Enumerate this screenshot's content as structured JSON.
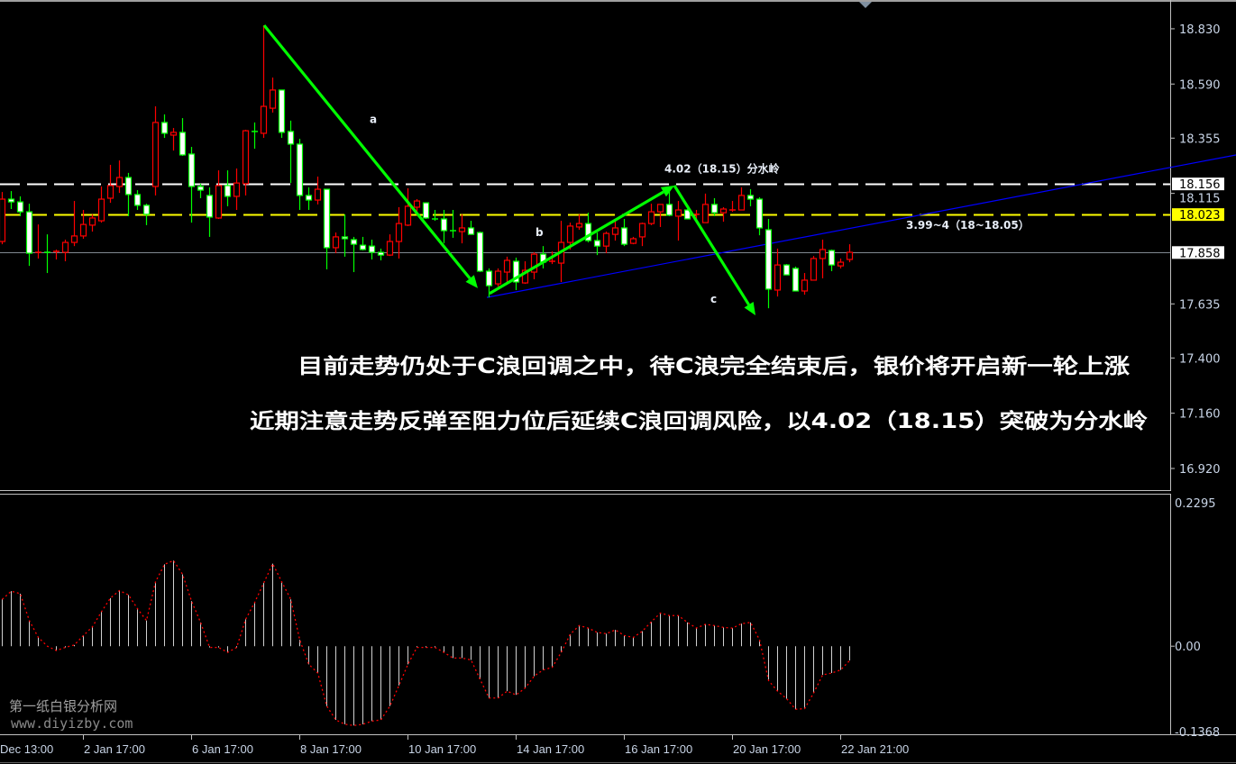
{
  "chart_data": [
    {
      "type": "candlestick",
      "price_axis": {
        "ylim": [
          16.826,
          18.955
        ],
        "ticks": [
          "18.830",
          "18.590",
          "18.355",
          "18.115",
          "17.635",
          "17.400",
          "17.160",
          "16.920"
        ]
      },
      "x_axis": {
        "labels": [
          {
            "text": "Dec 13:00",
            "candle": -1
          },
          {
            "text": "2 Jan 17:00",
            "candle": 10
          },
          {
            "text": "6 Jan 17:00",
            "candle": 22
          },
          {
            "text": "8 Jan 17:00",
            "candle": 34
          },
          {
            "text": "10 Jan 17:00",
            "candle": 46
          },
          {
            "text": "14 Jan 17:00",
            "candle": 58
          },
          {
            "text": "16 Jan 17:00",
            "candle": 70
          },
          {
            "text": "20 Jan 17:00",
            "candle": 82
          },
          {
            "text": "22 Jan 21:00",
            "candle": 94
          }
        ]
      },
      "ohlc_fields": [
        "open",
        "high",
        "low",
        "close"
      ],
      "candles": [
        [
          17.906,
          18.121,
          17.894,
          18.09
        ],
        [
          18.09,
          18.125,
          18.047,
          18.078
        ],
        [
          18.078,
          18.102,
          18.016,
          18.035
        ],
        [
          18.035,
          18.07,
          17.8,
          17.855
        ],
        [
          17.855,
          17.98,
          17.832,
          17.859
        ],
        [
          17.859,
          17.937,
          17.769,
          17.855
        ],
        [
          17.859,
          17.871,
          17.828,
          17.863
        ],
        [
          17.859,
          17.914,
          17.82,
          17.902
        ],
        [
          17.902,
          18.082,
          17.886,
          17.93
        ],
        [
          17.93,
          18.043,
          17.918,
          17.98
        ],
        [
          17.977,
          18.024,
          17.949,
          18.008
        ],
        [
          17.996,
          18.145,
          17.988,
          18.09
        ],
        [
          18.094,
          18.239,
          18.074,
          18.149
        ],
        [
          18.145,
          18.258,
          18.117,
          18.184
        ],
        [
          18.184,
          18.204,
          18.016,
          18.11
        ],
        [
          18.11,
          18.129,
          18.043,
          18.063
        ],
        [
          18.063,
          18.07,
          17.977,
          18.024
        ],
        [
          18.145,
          18.493,
          18.106,
          18.423
        ],
        [
          18.423,
          18.458,
          18.356,
          18.376
        ],
        [
          18.368,
          18.399,
          18.301,
          18.38
        ],
        [
          18.38,
          18.442,
          18.278,
          18.282
        ],
        [
          18.286,
          18.317,
          17.988,
          18.145
        ],
        [
          18.145,
          18.157,
          18.094,
          18.129
        ],
        [
          18.106,
          18.141,
          17.926,
          18.012
        ],
        [
          18.008,
          18.215,
          18.004,
          18.149
        ],
        [
          18.149,
          18.215,
          18.059,
          18.102
        ],
        [
          18.102,
          18.223,
          18.043,
          18.16
        ],
        [
          18.157,
          18.391,
          18.106,
          18.387
        ],
        [
          18.384,
          18.423,
          18.309,
          18.38
        ],
        [
          18.376,
          18.845,
          18.356,
          18.493
        ],
        [
          18.485,
          18.618,
          18.466,
          18.564
        ],
        [
          18.564,
          18.564,
          18.356,
          18.38
        ],
        [
          18.384,
          18.431,
          18.16,
          18.329
        ],
        [
          18.329,
          18.352,
          18.043,
          18.106
        ],
        [
          18.106,
          18.141,
          18.043,
          18.086
        ],
        [
          18.086,
          18.188,
          18.067,
          18.133
        ],
        [
          18.133,
          18.133,
          17.785,
          17.879
        ],
        [
          17.879,
          17.945,
          17.855,
          17.926
        ],
        [
          17.926,
          18.024,
          17.84,
          17.918
        ],
        [
          17.914,
          17.926,
          17.773,
          17.894
        ],
        [
          17.89,
          17.926,
          17.867,
          17.871
        ],
        [
          17.886,
          17.914,
          17.828,
          17.859
        ],
        [
          17.859,
          17.875,
          17.824,
          17.847
        ],
        [
          17.847,
          17.937,
          17.843,
          17.906
        ],
        [
          17.906,
          18.055,
          17.832,
          17.984
        ],
        [
          17.977,
          18.137,
          17.973,
          18.059
        ],
        [
          18.055,
          18.09,
          18.016,
          18.082
        ],
        [
          18.074,
          18.074,
          18.004,
          18.008
        ],
        [
          18.004,
          18.043,
          17.996,
          18.0
        ],
        [
          18.004,
          18.043,
          17.898,
          17.953
        ],
        [
          17.953,
          18.043,
          17.922,
          17.949
        ],
        [
          17.949,
          18.024,
          17.898,
          17.965
        ],
        [
          17.965,
          17.996,
          17.937,
          17.937
        ],
        [
          17.945,
          17.949,
          17.773,
          17.777
        ],
        [
          17.777,
          17.789,
          17.663,
          17.714
        ],
        [
          17.722,
          17.789,
          17.71,
          17.777
        ],
        [
          17.773,
          17.84,
          17.722,
          17.824
        ],
        [
          17.82,
          17.836,
          17.695,
          17.73
        ],
        [
          17.726,
          17.82,
          17.722,
          17.781
        ],
        [
          17.773,
          17.859,
          17.742,
          17.851
        ],
        [
          17.851,
          17.886,
          17.789,
          17.816
        ],
        [
          17.816,
          17.863,
          17.808,
          17.82
        ],
        [
          17.812,
          17.996,
          17.73,
          17.902
        ],
        [
          17.902,
          17.988,
          17.871,
          17.973
        ],
        [
          17.969,
          18.024,
          17.957,
          17.984
        ],
        [
          17.984,
          18.031,
          17.902,
          17.91
        ],
        [
          17.91,
          17.945,
          17.847,
          17.886
        ],
        [
          17.886,
          17.949,
          17.855,
          17.941
        ],
        [
          17.937,
          18.0,
          17.91,
          17.965
        ],
        [
          17.965,
          18.004,
          17.886,
          17.894
        ],
        [
          17.898,
          17.926,
          17.894,
          17.918
        ],
        [
          17.926,
          17.988,
          17.886,
          17.984
        ],
        [
          17.984,
          18.07,
          17.977,
          18.035
        ],
        [
          18.035,
          18.067,
          17.969,
          18.067
        ],
        [
          18.067,
          18.133,
          18.016,
          18.02
        ],
        [
          18.016,
          18.082,
          17.91,
          18.043
        ],
        [
          18.043,
          18.047,
          18.004,
          18.004
        ],
        [
          18.02,
          18.043,
          18.004,
          18.024
        ],
        [
          17.988,
          18.114,
          17.988,
          18.067
        ],
        [
          18.067,
          18.094,
          18.016,
          18.031
        ],
        [
          18.031,
          18.055,
          17.992,
          18.047
        ],
        [
          18.043,
          18.082,
          18.035,
          18.043
        ],
        [
          18.043,
          18.141,
          18.043,
          18.106
        ],
        [
          18.106,
          18.133,
          18.059,
          18.09
        ],
        [
          18.09,
          18.098,
          17.933,
          17.965
        ],
        [
          17.957,
          18.004,
          17.616,
          17.699
        ],
        [
          17.695,
          17.875,
          17.667,
          17.804
        ],
        [
          17.804,
          17.808,
          17.761,
          17.761
        ],
        [
          17.789,
          17.797,
          17.691,
          17.691
        ],
        [
          17.691,
          17.769,
          17.675,
          17.738
        ],
        [
          17.738,
          17.843,
          17.738,
          17.832
        ],
        [
          17.832,
          17.914,
          17.746,
          17.871
        ],
        [
          17.867,
          17.871,
          17.777,
          17.804
        ],
        [
          17.8,
          17.832,
          17.789,
          17.816
        ],
        [
          17.828,
          17.894,
          17.816,
          17.859
        ]
      ],
      "colors": {
        "bull": "#ff0000",
        "bear_body": "#ffffff",
        "bear_outline": "#00ff00",
        "background": "#000000"
      },
      "horizontal_lines": [
        {
          "price": 18.156,
          "label": "18.156",
          "style": "dashed",
          "color": "#ffffff",
          "label_bg": "#ffffff"
        },
        {
          "price": 18.023,
          "label": "18.023",
          "style": "dashed",
          "color": "#ffff00",
          "label_bg": "#ffff00"
        },
        {
          "price": 17.858,
          "label": "17.858",
          "style": "solid",
          "color": "#808890",
          "label_bg": "#ffffff"
        }
      ],
      "trendline": {
        "color": "#0000ff",
        "from": {
          "candle": 54.8,
          "price": 17.663
        },
        "to": {
          "candle": 137.9,
          "price": 18.282
        }
      },
      "wave_arrows": [
        {
          "label": "a",
          "color": "#00ff00",
          "from": {
            "candle": 30.1,
            "price": 18.845
          },
          "to": {
            "candle": 53.8,
            "price": 17.703
          },
          "label_at": {
            "candle": 41.8,
            "price": 18.42
          }
        },
        {
          "label": "b",
          "color": "#00ff00",
          "from": {
            "candle": 55.1,
            "price": 17.68
          },
          "to": {
            "candle": 75.6,
            "price": 18.149
          },
          "label_at": {
            "candle": 60.2,
            "price": 17.93
          }
        },
        {
          "label": "c",
          "color": "#00ff00",
          "from": {
            "candle": 75.6,
            "price": 18.149
          },
          "to": {
            "candle": 84.6,
            "price": 17.585
          },
          "label_at": {
            "candle": 79.6,
            "price": 17.64
          }
        }
      ],
      "annotations": [
        {
          "text": "4.02（18.15）分水岭",
          "candle": 74.5,
          "price": 18.205
        },
        {
          "text": "3.99~4（18~18.05）",
          "candle": 101.3,
          "price": 17.96
        }
      ]
    },
    {
      "type": "bar",
      "indicator_axis": {
        "ylim": [
          -0.141,
          0.244
        ],
        "ticks": [
          "0.2295",
          "0.00",
          "-0.1368"
        ],
        "tick_values": [
          0.2295,
          0,
          -0.1368
        ]
      },
      "colors": {
        "histogram": "#d0d0d0",
        "signal": "#ff0000"
      },
      "values": [
        0.075,
        0.088,
        0.084,
        0.041,
        0.014,
        0.0,
        -0.007,
        -0.002,
        0.002,
        0.017,
        0.031,
        0.055,
        0.077,
        0.089,
        0.082,
        0.06,
        0.041,
        0.103,
        0.131,
        0.137,
        0.115,
        0.072,
        0.038,
        -0.002,
        -0.002,
        -0.01,
        -0.002,
        0.043,
        0.07,
        0.101,
        0.132,
        0.103,
        0.075,
        0.01,
        -0.029,
        -0.043,
        -0.096,
        -0.118,
        -0.125,
        -0.127,
        -0.125,
        -0.12,
        -0.118,
        -0.096,
        -0.063,
        -0.029,
        -0.002,
        -0.002,
        -0.002,
        -0.01,
        -0.019,
        -0.019,
        -0.022,
        -0.053,
        -0.083,
        -0.083,
        -0.072,
        -0.078,
        -0.067,
        -0.048,
        -0.038,
        -0.034,
        -0.01,
        0.019,
        0.033,
        0.029,
        0.022,
        0.02,
        0.026,
        0.017,
        0.014,
        0.024,
        0.039,
        0.053,
        0.049,
        0.049,
        0.038,
        0.029,
        0.035,
        0.033,
        0.03,
        0.029,
        0.036,
        0.038,
        0.01,
        -0.055,
        -0.072,
        -0.084,
        -0.101,
        -0.1,
        -0.075,
        -0.046,
        -0.043,
        -0.038,
        -0.023
      ]
    }
  ],
  "notes": {
    "line1": "目前走势仍处于C浪回调之中，待C浪完全结束后，银价将开启新一轮上涨",
    "line2": "近期注意走势反弹至阻力位后延续C浪回调风险，以4.02（18.15）突破为分水岭"
  },
  "watermark": {
    "name": "第一纸白银分析网",
    "url": "www.diyizby.com"
  },
  "icons": {
    "shift-marker": "triangle-down-icon"
  }
}
